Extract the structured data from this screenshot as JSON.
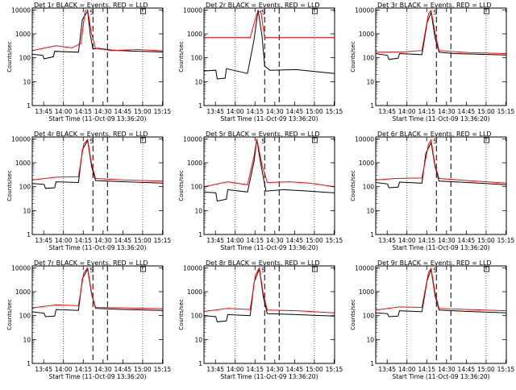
{
  "common": {
    "xlabel": "Start Time (11-Oct-09 13:36:20)",
    "ylabel": "Counts/sec",
    "x_ticks": [
      "13:45",
      "14:00",
      "14:15",
      "14:30",
      "14:45",
      "15:00",
      "15:15"
    ],
    "y_ticks": [
      "1",
      "10",
      "100",
      "1000",
      "10000"
    ],
    "xlim_minutes_after_start": [
      0,
      99
    ],
    "ylim": [
      1,
      12000
    ],
    "y_scale": "log",
    "colors": {
      "events": "#000000",
      "lld": "#ff0000",
      "axes": "#000000"
    },
    "markers": {
      "S": 46,
      "E": 57
    }
  },
  "chart_data": [
    {
      "type": "line",
      "title": "Det 1r BLACK = Events, RED = LLD",
      "series": [
        {
          "values": [
            {
              "x": 0,
              "y": 140
            },
            {
              "x": 8,
              "y": 125
            },
            {
              "x": 9,
              "y": 90
            },
            {
              "x": 16,
              "y": 110
            },
            {
              "x": 17,
              "y": 185
            },
            {
              "x": 35,
              "y": 170
            },
            {
              "x": 38,
              "y": 4000
            },
            {
              "x": 42,
              "y": 9000
            },
            {
              "x": 44,
              "y": 900
            },
            {
              "x": 46,
              "y": 230
            },
            {
              "x": 50,
              "y": 250
            },
            {
              "x": 60,
              "y": 210
            },
            {
              "x": 75,
              "y": 190
            },
            {
              "x": 99,
              "y": 175
            }
          ]
        },
        {
          "values": [
            {
              "x": 0,
              "y": 200
            },
            {
              "x": 10,
              "y": 260
            },
            {
              "x": 18,
              "y": 320
            },
            {
              "x": 30,
              "y": 260
            },
            {
              "x": 37,
              "y": 400
            },
            {
              "x": 40,
              "y": 9000
            },
            {
              "x": 42,
              "y": 10000
            },
            {
              "x": 45,
              "y": 1000
            },
            {
              "x": 48,
              "y": 250
            },
            {
              "x": 60,
              "y": 200
            },
            {
              "x": 80,
              "y": 220
            },
            {
              "x": 99,
              "y": 195
            }
          ]
        }
      ]
    },
    {
      "type": "line",
      "title": "Det 2r BLACK = Events, RED = LLD",
      "series": [
        {
          "values": [
            {
              "x": 0,
              "y": 28
            },
            {
              "x": 9,
              "y": 30
            },
            {
              "x": 10,
              "y": 13
            },
            {
              "x": 16,
              "y": 14
            },
            {
              "x": 17,
              "y": 35
            },
            {
              "x": 33,
              "y": 22
            },
            {
              "x": 38,
              "y": 600
            },
            {
              "x": 41,
              "y": 10000
            },
            {
              "x": 44,
              "y": 800
            },
            {
              "x": 46,
              "y": 45
            },
            {
              "x": 50,
              "y": 30
            },
            {
              "x": 70,
              "y": 32
            },
            {
              "x": 99,
              "y": 22
            }
          ]
        },
        {
          "values": [
            {
              "x": 0,
              "y": 700
            },
            {
              "x": 35,
              "y": 700
            },
            {
              "x": 40,
              "y": 7000
            },
            {
              "x": 43,
              "y": 9000
            },
            {
              "x": 46,
              "y": 700
            },
            {
              "x": 99,
              "y": 700
            }
          ]
        }
      ]
    },
    {
      "type": "line",
      "title": "Det 3r BLACK = Events, RED = LLD",
      "series": [
        {
          "values": [
            {
              "x": 0,
              "y": 150
            },
            {
              "x": 9,
              "y": 125
            },
            {
              "x": 10,
              "y": 85
            },
            {
              "x": 17,
              "y": 95
            },
            {
              "x": 18,
              "y": 150
            },
            {
              "x": 35,
              "y": 135
            },
            {
              "x": 39,
              "y": 3000
            },
            {
              "x": 42,
              "y": 8000
            },
            {
              "x": 45,
              "y": 700
            },
            {
              "x": 48,
              "y": 170
            },
            {
              "x": 60,
              "y": 150
            },
            {
              "x": 99,
              "y": 130
            }
          ]
        },
        {
          "values": [
            {
              "x": 0,
              "y": 170
            },
            {
              "x": 20,
              "y": 175
            },
            {
              "x": 35,
              "y": 200
            },
            {
              "x": 40,
              "y": 7000
            },
            {
              "x": 42,
              "y": 9500
            },
            {
              "x": 45,
              "y": 1100
            },
            {
              "x": 48,
              "y": 200
            },
            {
              "x": 70,
              "y": 165
            },
            {
              "x": 99,
              "y": 150
            }
          ]
        }
      ]
    },
    {
      "type": "line",
      "title": "Det 4r BLACK = Events, RED = LLD",
      "series": [
        {
          "values": [
            {
              "x": 0,
              "y": 135
            },
            {
              "x": 9,
              "y": 125
            },
            {
              "x": 10,
              "y": 85
            },
            {
              "x": 17,
              "y": 90
            },
            {
              "x": 18,
              "y": 160
            },
            {
              "x": 35,
              "y": 150
            },
            {
              "x": 38,
              "y": 3500
            },
            {
              "x": 42,
              "y": 8500
            },
            {
              "x": 45,
              "y": 700
            },
            {
              "x": 48,
              "y": 180
            },
            {
              "x": 70,
              "y": 160
            },
            {
              "x": 99,
              "y": 140
            }
          ]
        },
        {
          "values": [
            {
              "x": 0,
              "y": 190
            },
            {
              "x": 18,
              "y": 250
            },
            {
              "x": 35,
              "y": 260
            },
            {
              "x": 39,
              "y": 6000
            },
            {
              "x": 42,
              "y": 9500
            },
            {
              "x": 45,
              "y": 900
            },
            {
              "x": 48,
              "y": 220
            },
            {
              "x": 70,
              "y": 190
            },
            {
              "x": 99,
              "y": 170
            }
          ]
        }
      ]
    },
    {
      "type": "line",
      "title": "Det 5r BLACK = Events, RED = LLD",
      "series": [
        {
          "values": [
            {
              "x": 0,
              "y": 60
            },
            {
              "x": 9,
              "y": 55
            },
            {
              "x": 10,
              "y": 25
            },
            {
              "x": 17,
              "y": 30
            },
            {
              "x": 18,
              "y": 75
            },
            {
              "x": 33,
              "y": 60
            },
            {
              "x": 38,
              "y": 1200
            },
            {
              "x": 40,
              "y": 9500
            },
            {
              "x": 43,
              "y": 900
            },
            {
              "x": 47,
              "y": 65
            },
            {
              "x": 60,
              "y": 75
            },
            {
              "x": 80,
              "y": 65
            },
            {
              "x": 99,
              "y": 55
            }
          ]
        },
        {
          "values": [
            {
              "x": 0,
              "y": 100
            },
            {
              "x": 18,
              "y": 160
            },
            {
              "x": 33,
              "y": 120
            },
            {
              "x": 38,
              "y": 2000
            },
            {
              "x": 40,
              "y": 10000
            },
            {
              "x": 44,
              "y": 800
            },
            {
              "x": 48,
              "y": 150
            },
            {
              "x": 65,
              "y": 160
            },
            {
              "x": 80,
              "y": 140
            },
            {
              "x": 99,
              "y": 100
            }
          ]
        }
      ]
    },
    {
      "type": "line",
      "title": "Det 6r BLACK = Events, RED = LLD",
      "series": [
        {
          "values": [
            {
              "x": 0,
              "y": 150
            },
            {
              "x": 9,
              "y": 130
            },
            {
              "x": 10,
              "y": 90
            },
            {
              "x": 17,
              "y": 95
            },
            {
              "x": 18,
              "y": 155
            },
            {
              "x": 35,
              "y": 140
            },
            {
              "x": 38,
              "y": 2500
            },
            {
              "x": 42,
              "y": 7000
            },
            {
              "x": 45,
              "y": 700
            },
            {
              "x": 48,
              "y": 170
            },
            {
              "x": 70,
              "y": 150
            },
            {
              "x": 99,
              "y": 120
            }
          ]
        },
        {
          "values": [
            {
              "x": 0,
              "y": 190
            },
            {
              "x": 15,
              "y": 220
            },
            {
              "x": 35,
              "y": 230
            },
            {
              "x": 40,
              "y": 6000
            },
            {
              "x": 42,
              "y": 9000
            },
            {
              "x": 45,
              "y": 800
            },
            {
              "x": 48,
              "y": 220
            },
            {
              "x": 70,
              "y": 180
            },
            {
              "x": 99,
              "y": 140
            }
          ]
        }
      ]
    },
    {
      "type": "line",
      "title": "Det 7r BLACK = Events, RED = LLD",
      "series": [
        {
          "values": [
            {
              "x": 0,
              "y": 145
            },
            {
              "x": 9,
              "y": 125
            },
            {
              "x": 10,
              "y": 90
            },
            {
              "x": 17,
              "y": 95
            },
            {
              "x": 18,
              "y": 180
            },
            {
              "x": 35,
              "y": 165
            },
            {
              "x": 38,
              "y": 3500
            },
            {
              "x": 42,
              "y": 9000
            },
            {
              "x": 45,
              "y": 800
            },
            {
              "x": 48,
              "y": 200
            },
            {
              "x": 70,
              "y": 180
            },
            {
              "x": 99,
              "y": 165
            }
          ]
        },
        {
          "values": [
            {
              "x": 0,
              "y": 210
            },
            {
              "x": 18,
              "y": 280
            },
            {
              "x": 35,
              "y": 260
            },
            {
              "x": 39,
              "y": 6000
            },
            {
              "x": 42,
              "y": 10000
            },
            {
              "x": 45,
              "y": 900
            },
            {
              "x": 48,
              "y": 220
            },
            {
              "x": 70,
              "y": 210
            },
            {
              "x": 99,
              "y": 195
            }
          ]
        }
      ]
    },
    {
      "type": "line",
      "title": "Det 8r BLACK = Events, RED = LLD",
      "series": [
        {
          "values": [
            {
              "x": 0,
              "y": 100
            },
            {
              "x": 9,
              "y": 90
            },
            {
              "x": 10,
              "y": 55
            },
            {
              "x": 17,
              "y": 60
            },
            {
              "x": 18,
              "y": 110
            },
            {
              "x": 35,
              "y": 100
            },
            {
              "x": 38,
              "y": 2500
            },
            {
              "x": 42,
              "y": 9000
            },
            {
              "x": 45,
              "y": 600
            },
            {
              "x": 48,
              "y": 120
            },
            {
              "x": 70,
              "y": 110
            },
            {
              "x": 99,
              "y": 95
            }
          ]
        },
        {
          "values": [
            {
              "x": 0,
              "y": 150
            },
            {
              "x": 18,
              "y": 200
            },
            {
              "x": 35,
              "y": 180
            },
            {
              "x": 39,
              "y": 5000
            },
            {
              "x": 42,
              "y": 10000
            },
            {
              "x": 45,
              "y": 800
            },
            {
              "x": 48,
              "y": 170
            },
            {
              "x": 70,
              "y": 160
            },
            {
              "x": 99,
              "y": 130
            }
          ]
        }
      ]
    },
    {
      "type": "line",
      "title": "Det 9r BLACK = Events, RED = LLD",
      "series": [
        {
          "values": [
            {
              "x": 0,
              "y": 130
            },
            {
              "x": 9,
              "y": 120
            },
            {
              "x": 10,
              "y": 90
            },
            {
              "x": 17,
              "y": 95
            },
            {
              "x": 18,
              "y": 160
            },
            {
              "x": 35,
              "y": 145
            },
            {
              "x": 39,
              "y": 3000
            },
            {
              "x": 42,
              "y": 8500
            },
            {
              "x": 45,
              "y": 700
            },
            {
              "x": 48,
              "y": 170
            },
            {
              "x": 70,
              "y": 150
            },
            {
              "x": 99,
              "y": 130
            }
          ]
        },
        {
          "values": [
            {
              "x": 0,
              "y": 170
            },
            {
              "x": 18,
              "y": 230
            },
            {
              "x": 35,
              "y": 220
            },
            {
              "x": 40,
              "y": 6500
            },
            {
              "x": 42,
              "y": 9500
            },
            {
              "x": 45,
              "y": 900
            },
            {
              "x": 48,
              "y": 200
            },
            {
              "x": 70,
              "y": 180
            },
            {
              "x": 99,
              "y": 160
            }
          ]
        }
      ]
    }
  ]
}
